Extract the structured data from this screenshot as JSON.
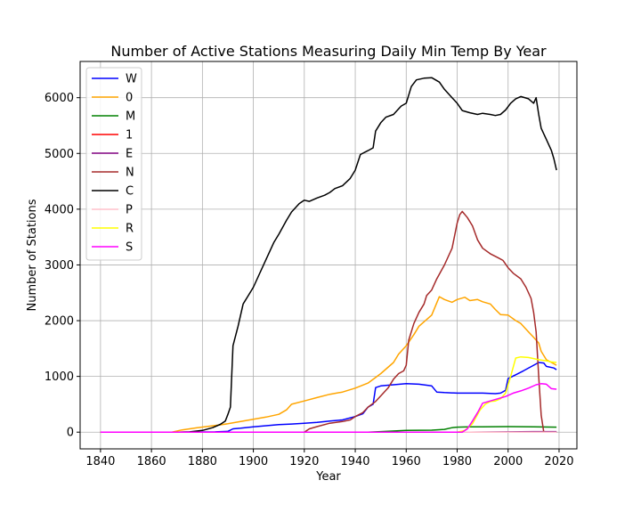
{
  "chart_data": {
    "type": "line",
    "title": "Number of Active Stations Measuring Daily Min Temp By Year",
    "xlabel": "Year",
    "ylabel": "Number of Stations",
    "xlim": [
      1832,
      2027
    ],
    "ylim": [
      -300,
      6650
    ],
    "xticks": [
      1840,
      1860,
      1880,
      1900,
      1920,
      1940,
      1960,
      1980,
      2000,
      2020
    ],
    "yticks": [
      0,
      1000,
      2000,
      3000,
      4000,
      5000,
      6000
    ],
    "grid": true,
    "legend_position": "upper-left",
    "series": [
      {
        "name": "W",
        "color": "#0000ff",
        "points": [
          [
            1840,
            0
          ],
          [
            1870,
            0
          ],
          [
            1885,
            5
          ],
          [
            1890,
            15
          ],
          [
            1892,
            60
          ],
          [
            1895,
            70
          ],
          [
            1900,
            95
          ],
          [
            1905,
            115
          ],
          [
            1910,
            135
          ],
          [
            1915,
            145
          ],
          [
            1920,
            160
          ],
          [
            1925,
            175
          ],
          [
            1930,
            200
          ],
          [
            1935,
            220
          ],
          [
            1940,
            280
          ],
          [
            1943,
            330
          ],
          [
            1945,
            450
          ],
          [
            1947,
            500
          ],
          [
            1948,
            800
          ],
          [
            1950,
            830
          ],
          [
            1955,
            850
          ],
          [
            1960,
            870
          ],
          [
            1965,
            860
          ],
          [
            1970,
            830
          ],
          [
            1972,
            720
          ],
          [
            1975,
            710
          ],
          [
            1980,
            700
          ],
          [
            1985,
            700
          ],
          [
            1990,
            700
          ],
          [
            1995,
            690
          ],
          [
            1997,
            700
          ],
          [
            1999,
            750
          ],
          [
            2000,
            960
          ],
          [
            2003,
            1030
          ],
          [
            2006,
            1100
          ],
          [
            2010,
            1200
          ],
          [
            2012,
            1250
          ],
          [
            2014,
            1240
          ],
          [
            2015,
            1180
          ],
          [
            2018,
            1150
          ],
          [
            2019,
            1120
          ]
        ]
      },
      {
        "name": "0",
        "color": "#ffa500",
        "points": [
          [
            1840,
            0
          ],
          [
            1868,
            0
          ],
          [
            1872,
            40
          ],
          [
            1878,
            80
          ],
          [
            1885,
            120
          ],
          [
            1890,
            150
          ],
          [
            1895,
            190
          ],
          [
            1900,
            230
          ],
          [
            1905,
            270
          ],
          [
            1910,
            320
          ],
          [
            1913,
            400
          ],
          [
            1915,
            500
          ],
          [
            1920,
            560
          ],
          [
            1925,
            620
          ],
          [
            1930,
            680
          ],
          [
            1935,
            720
          ],
          [
            1940,
            790
          ],
          [
            1945,
            880
          ],
          [
            1950,
            1050
          ],
          [
            1955,
            1250
          ],
          [
            1957,
            1400
          ],
          [
            1960,
            1550
          ],
          [
            1963,
            1750
          ],
          [
            1965,
            1900
          ],
          [
            1970,
            2100
          ],
          [
            1973,
            2430
          ],
          [
            1975,
            2380
          ],
          [
            1978,
            2330
          ],
          [
            1980,
            2380
          ],
          [
            1983,
            2420
          ],
          [
            1985,
            2360
          ],
          [
            1988,
            2380
          ],
          [
            1990,
            2340
          ],
          [
            1993,
            2300
          ],
          [
            1995,
            2200
          ],
          [
            1997,
            2110
          ],
          [
            2000,
            2100
          ],
          [
            2003,
            2000
          ],
          [
            2005,
            1950
          ],
          [
            2008,
            1800
          ],
          [
            2010,
            1700
          ],
          [
            2012,
            1600
          ],
          [
            2013,
            1450
          ],
          [
            2015,
            1300
          ],
          [
            2017,
            1250
          ],
          [
            2019,
            1200
          ]
        ]
      },
      {
        "name": "M",
        "color": "#008000",
        "points": [
          [
            1840,
            0
          ],
          [
            1945,
            0
          ],
          [
            1950,
            10
          ],
          [
            1960,
            30
          ],
          [
            1970,
            35
          ],
          [
            1975,
            50
          ],
          [
            1978,
            80
          ],
          [
            1980,
            90
          ],
          [
            1985,
            95
          ],
          [
            1990,
            95
          ],
          [
            2000,
            100
          ],
          [
            2010,
            95
          ],
          [
            2019,
            90
          ]
        ]
      },
      {
        "name": "1",
        "color": "#ff0000",
        "points": [
          [
            1840,
            0
          ],
          [
            1960,
            0
          ],
          [
            1980,
            0
          ],
          [
            2000,
            0
          ],
          [
            2019,
            0
          ]
        ]
      },
      {
        "name": "E",
        "color": "#800080",
        "points": [
          [
            1840,
            0
          ],
          [
            1960,
            0
          ],
          [
            1985,
            0
          ],
          [
            2000,
            5
          ],
          [
            2010,
            10
          ],
          [
            2019,
            10
          ]
        ]
      },
      {
        "name": "N",
        "color": "#a52a2a",
        "points": [
          [
            1840,
            0
          ],
          [
            1920,
            0
          ],
          [
            1922,
            60
          ],
          [
            1925,
            100
          ],
          [
            1930,
            160
          ],
          [
            1935,
            190
          ],
          [
            1938,
            220
          ],
          [
            1940,
            280
          ],
          [
            1943,
            350
          ],
          [
            1945,
            450
          ],
          [
            1948,
            550
          ],
          [
            1950,
            650
          ],
          [
            1953,
            800
          ],
          [
            1955,
            950
          ],
          [
            1957,
            1050
          ],
          [
            1959,
            1100
          ],
          [
            1960,
            1200
          ],
          [
            1961,
            1650
          ],
          [
            1963,
            1950
          ],
          [
            1965,
            2150
          ],
          [
            1967,
            2300
          ],
          [
            1968,
            2450
          ],
          [
            1970,
            2550
          ],
          [
            1972,
            2750
          ],
          [
            1975,
            3000
          ],
          [
            1978,
            3300
          ],
          [
            1980,
            3750
          ],
          [
            1981,
            3900
          ],
          [
            1982,
            3960
          ],
          [
            1984,
            3850
          ],
          [
            1986,
            3700
          ],
          [
            1988,
            3450
          ],
          [
            1990,
            3300
          ],
          [
            1993,
            3200
          ],
          [
            1996,
            3130
          ],
          [
            1998,
            3080
          ],
          [
            2000,
            2950
          ],
          [
            2002,
            2850
          ],
          [
            2005,
            2750
          ],
          [
            2007,
            2600
          ],
          [
            2009,
            2400
          ],
          [
            2010,
            2150
          ],
          [
            2011,
            1800
          ],
          [
            2012,
            1000
          ],
          [
            2013,
            300
          ],
          [
            2014,
            0
          ],
          [
            2019,
            0
          ]
        ]
      },
      {
        "name": "C",
        "color": "#000000",
        "points": [
          [
            1840,
            0
          ],
          [
            1870,
            0
          ],
          [
            1875,
            5
          ],
          [
            1880,
            30
          ],
          [
            1884,
            80
          ],
          [
            1887,
            140
          ],
          [
            1889,
            200
          ],
          [
            1890,
            320
          ],
          [
            1891,
            450
          ],
          [
            1892,
            1550
          ],
          [
            1894,
            1900
          ],
          [
            1896,
            2300
          ],
          [
            1898,
            2450
          ],
          [
            1900,
            2600
          ],
          [
            1902,
            2800
          ],
          [
            1905,
            3100
          ],
          [
            1908,
            3400
          ],
          [
            1910,
            3550
          ],
          [
            1913,
            3800
          ],
          [
            1915,
            3950
          ],
          [
            1918,
            4100
          ],
          [
            1920,
            4160
          ],
          [
            1922,
            4140
          ],
          [
            1925,
            4200
          ],
          [
            1928,
            4250
          ],
          [
            1930,
            4300
          ],
          [
            1932,
            4370
          ],
          [
            1935,
            4420
          ],
          [
            1938,
            4550
          ],
          [
            1940,
            4700
          ],
          [
            1942,
            4980
          ],
          [
            1945,
            5050
          ],
          [
            1947,
            5100
          ],
          [
            1948,
            5400
          ],
          [
            1950,
            5550
          ],
          [
            1952,
            5650
          ],
          [
            1955,
            5700
          ],
          [
            1957,
            5800
          ],
          [
            1958,
            5850
          ],
          [
            1960,
            5900
          ],
          [
            1962,
            6200
          ],
          [
            1964,
            6320
          ],
          [
            1967,
            6350
          ],
          [
            1970,
            6360
          ],
          [
            1973,
            6280
          ],
          [
            1975,
            6150
          ],
          [
            1978,
            6000
          ],
          [
            1980,
            5900
          ],
          [
            1982,
            5770
          ],
          [
            1985,
            5730
          ],
          [
            1988,
            5700
          ],
          [
            1990,
            5720
          ],
          [
            1993,
            5700
          ],
          [
            1995,
            5680
          ],
          [
            1997,
            5700
          ],
          [
            1999,
            5780
          ],
          [
            2001,
            5900
          ],
          [
            2003,
            5980
          ],
          [
            2005,
            6020
          ],
          [
            2008,
            5980
          ],
          [
            2010,
            5900
          ],
          [
            2011,
            6000
          ],
          [
            2012,
            5700
          ],
          [
            2013,
            5450
          ],
          [
            2015,
            5250
          ],
          [
            2017,
            5050
          ],
          [
            2018,
            4900
          ],
          [
            2019,
            4700
          ]
        ]
      },
      {
        "name": "P",
        "color": "#ffc0cb",
        "points": [
          [
            1840,
            0
          ],
          [
            1980,
            0
          ],
          [
            2000,
            0
          ],
          [
            2019,
            0
          ]
        ]
      },
      {
        "name": "R",
        "color": "#ffff00",
        "points": [
          [
            1840,
            0
          ],
          [
            1980,
            0
          ],
          [
            1983,
            30
          ],
          [
            1986,
            150
          ],
          [
            1989,
            400
          ],
          [
            1991,
            500
          ],
          [
            1993,
            550
          ],
          [
            1995,
            560
          ],
          [
            1997,
            600
          ],
          [
            1999,
            700
          ],
          [
            2001,
            1000
          ],
          [
            2003,
            1330
          ],
          [
            2005,
            1350
          ],
          [
            2008,
            1340
          ],
          [
            2010,
            1320
          ],
          [
            2012,
            1300
          ],
          [
            2015,
            1280
          ],
          [
            2017,
            1260
          ],
          [
            2019,
            1250
          ]
        ]
      },
      {
        "name": "S",
        "color": "#ff00ff",
        "points": [
          [
            1840,
            0
          ],
          [
            1982,
            0
          ],
          [
            1984,
            60
          ],
          [
            1986,
            200
          ],
          [
            1988,
            350
          ],
          [
            1990,
            520
          ],
          [
            1993,
            560
          ],
          [
            1996,
            600
          ],
          [
            1999,
            640
          ],
          [
            2002,
            700
          ],
          [
            2005,
            740
          ],
          [
            2008,
            790
          ],
          [
            2011,
            850
          ],
          [
            2013,
            870
          ],
          [
            2015,
            860
          ],
          [
            2017,
            780
          ],
          [
            2019,
            770
          ]
        ]
      }
    ]
  }
}
